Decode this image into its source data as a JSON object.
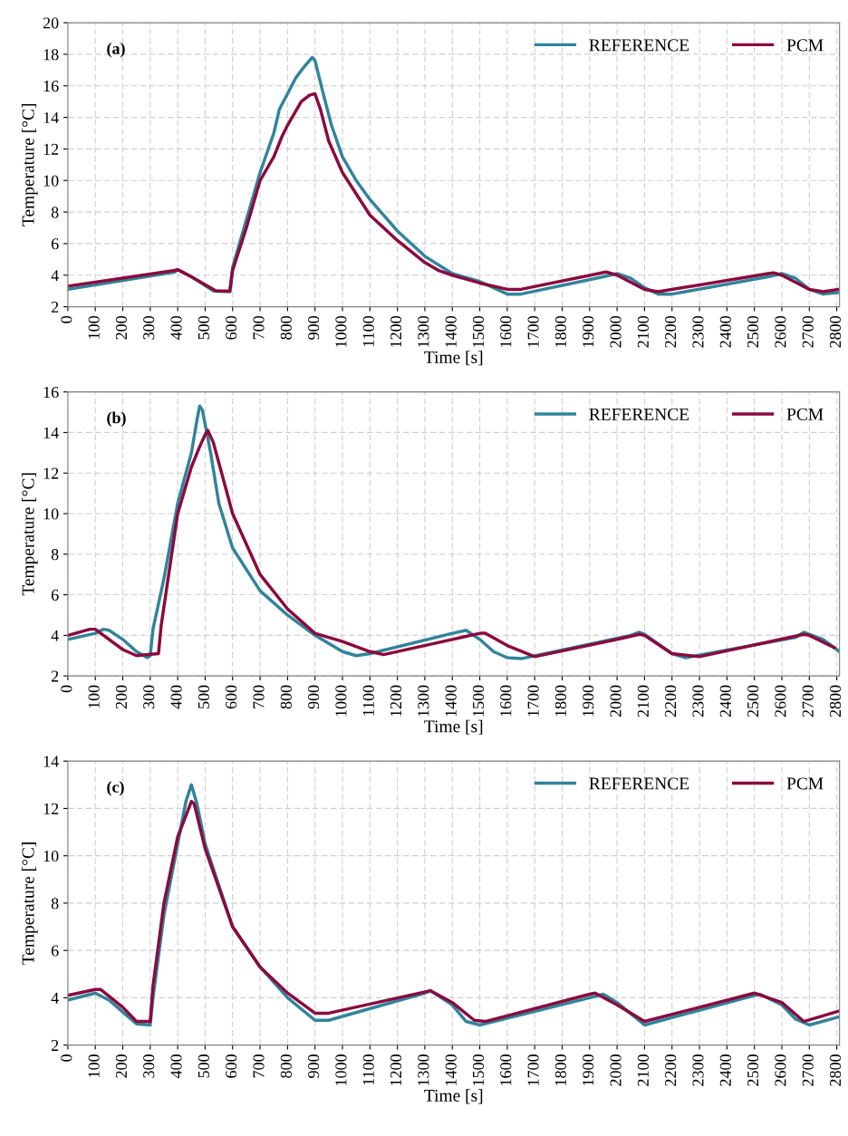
{
  "chart_data": [
    {
      "type": "line",
      "annotations": [
        "(a)"
      ],
      "xlabel": "Time [s]",
      "ylabel": "Temperature [°C]",
      "xlim": [
        0,
        2810
      ],
      "xticks": [
        0,
        100,
        200,
        300,
        400,
        500,
        600,
        700,
        800,
        900,
        1000,
        1100,
        1200,
        1300,
        1400,
        1500,
        1600,
        1700,
        1800,
        1900,
        2000,
        2100,
        2200,
        2300,
        2400,
        2500,
        2600,
        2700,
        2800
      ],
      "ylim": [
        2,
        20
      ],
      "yticks": [
        2,
        4,
        6,
        8,
        10,
        12,
        14,
        16,
        18,
        20
      ],
      "grid": true,
      "legend": "top right",
      "series": [
        {
          "name": "REFERENCE",
          "color": "#31849b",
          "x": [
            0,
            390,
            400,
            450,
            530,
            590,
            600,
            650,
            700,
            750,
            770,
            800,
            830,
            860,
            890,
            900,
            930,
            960,
            1000,
            1050,
            1100,
            1200,
            1300,
            1400,
            1500,
            1550,
            1600,
            1650,
            1950,
            2000,
            2050,
            2100,
            2150,
            2200,
            2550,
            2600,
            2650,
            2700,
            2750,
            2810
          ],
          "values": [
            3.1,
            4.2,
            4.35,
            3.9,
            3.0,
            2.95,
            4.5,
            7.5,
            10.5,
            13,
            14.5,
            15.5,
            16.5,
            17.2,
            17.8,
            17.6,
            15.5,
            13.5,
            11.5,
            10,
            8.8,
            6.8,
            5.2,
            4.1,
            3.6,
            3.2,
            2.8,
            2.8,
            3.9,
            4.1,
            3.8,
            3.2,
            2.8,
            2.8,
            3.9,
            4.1,
            3.8,
            3.1,
            2.8,
            2.9
          ]
        },
        {
          "name": "PCM",
          "color": "#8b0a3e",
          "x": [
            0,
            390,
            400,
            450,
            500,
            540,
            590,
            600,
            650,
            700,
            750,
            780,
            800,
            850,
            880,
            900,
            920,
            950,
            1000,
            1100,
            1200,
            1300,
            1350,
            1400,
            1500,
            1600,
            1650,
            1960,
            2000,
            2100,
            2150,
            2550,
            2570,
            2600,
            2700,
            2750,
            2810
          ],
          "values": [
            3.3,
            4.3,
            4.35,
            3.9,
            3.4,
            3.0,
            3.0,
            4.3,
            7,
            10,
            11.5,
            12.8,
            13.5,
            15.0,
            15.4,
            15.5,
            14.5,
            12.5,
            10.5,
            7.8,
            6.2,
            4.8,
            4.3,
            4.0,
            3.5,
            3.1,
            3.1,
            4.2,
            4.0,
            3.1,
            2.95,
            4.1,
            4.15,
            4.0,
            3.1,
            2.95,
            3.1
          ]
        }
      ]
    },
    {
      "type": "line",
      "annotations": [
        "(b)"
      ],
      "xlabel": "Time [s]",
      "ylabel": "Temperature [°C]",
      "xlim": [
        0,
        2810
      ],
      "xticks": [
        0,
        100,
        200,
        300,
        400,
        500,
        600,
        700,
        800,
        900,
        1000,
        1100,
        1200,
        1300,
        1400,
        1500,
        1600,
        1700,
        1800,
        1900,
        2000,
        2100,
        2200,
        2300,
        2400,
        2500,
        2600,
        2700,
        2800
      ],
      "ylim": [
        2,
        16
      ],
      "yticks": [
        2,
        4,
        6,
        8,
        10,
        12,
        14,
        16
      ],
      "grid": true,
      "legend": "top right",
      "series": [
        {
          "name": "REFERENCE",
          "color": "#31849b",
          "x": [
            0,
            100,
            130,
            150,
            200,
            250,
            290,
            300,
            310,
            350,
            400,
            450,
            470,
            480,
            490,
            520,
            550,
            600,
            700,
            800,
            900,
            1000,
            1050,
            1100,
            1400,
            1450,
            1500,
            1550,
            1600,
            1650,
            2050,
            2080,
            2100,
            2200,
            2250,
            2650,
            2680,
            2750,
            2810
          ],
          "values": [
            3.8,
            4.1,
            4.3,
            4.25,
            3.8,
            3.2,
            2.9,
            3.0,
            4.3,
            6.8,
            10.5,
            13,
            14.6,
            15.3,
            15.1,
            13,
            10.5,
            8.3,
            6.2,
            5.0,
            4.0,
            3.2,
            3.0,
            3.1,
            4.1,
            4.25,
            3.8,
            3.2,
            2.9,
            2.85,
            4.0,
            4.15,
            4.05,
            3.1,
            2.9,
            3.9,
            4.15,
            3.8,
            3.2
          ]
        },
        {
          "name": "PCM",
          "color": "#8b0a3e",
          "x": [
            0,
            80,
            100,
            200,
            250,
            330,
            340,
            400,
            450,
            480,
            500,
            510,
            530,
            600,
            700,
            800,
            900,
            1000,
            1100,
            1150,
            1500,
            1520,
            1600,
            1700,
            2000,
            2080,
            2100,
            2200,
            2300,
            2680,
            2700,
            2790
          ],
          "values": [
            4.0,
            4.3,
            4.3,
            3.3,
            3.0,
            3.1,
            4.5,
            10,
            12.3,
            13.3,
            13.9,
            14.1,
            13.5,
            10,
            7,
            5.3,
            4.1,
            3.7,
            3.2,
            3.05,
            4.1,
            4.1,
            3.5,
            2.95,
            3.8,
            4.05,
            4.0,
            3.1,
            2.95,
            4.05,
            4.0,
            3.4
          ]
        }
      ]
    },
    {
      "type": "line",
      "annotations": [
        "(c)"
      ],
      "xlabel": "Time [s]",
      "ylabel": "Temperature [°C]",
      "xlim": [
        0,
        2810
      ],
      "xticks": [
        0,
        100,
        200,
        300,
        400,
        500,
        600,
        700,
        800,
        900,
        1000,
        1100,
        1200,
        1300,
        1400,
        1500,
        1600,
        1700,
        1800,
        1900,
        2000,
        2100,
        2200,
        2300,
        2400,
        2500,
        2600,
        2700,
        2800
      ],
      "ylim": [
        2,
        14
      ],
      "yticks": [
        2,
        4,
        6,
        8,
        10,
        12,
        14
      ],
      "grid": true,
      "legend": "top right",
      "series": [
        {
          "name": "REFERENCE",
          "color": "#31849b",
          "x": [
            0,
            100,
            150,
            200,
            250,
            300,
            310,
            350,
            400,
            430,
            450,
            470,
            500,
            600,
            700,
            800,
            900,
            950,
            1300,
            1320,
            1400,
            1450,
            1500,
            1900,
            1950,
            2000,
            2100,
            2500,
            2520,
            2600,
            2650,
            2700,
            2810
          ],
          "values": [
            3.9,
            4.2,
            3.9,
            3.4,
            2.9,
            2.85,
            4.0,
            7.5,
            10.5,
            12.3,
            13.0,
            12.2,
            10.5,
            7,
            5.3,
            4.0,
            3.05,
            3.05,
            4.2,
            4.3,
            3.7,
            3.0,
            2.85,
            4.0,
            4.15,
            3.8,
            2.85,
            4.1,
            4.15,
            3.7,
            3.1,
            2.85,
            3.2
          ]
        },
        {
          "name": "PCM",
          "color": "#8b0a3e",
          "x": [
            0,
            100,
            120,
            200,
            250,
            300,
            310,
            350,
            400,
            450,
            460,
            500,
            600,
            700,
            800,
            900,
            950,
            1320,
            1400,
            1480,
            1520,
            1900,
            1920,
            2000,
            2100,
            2500,
            2600,
            2680,
            2810
          ],
          "values": [
            4.1,
            4.35,
            4.35,
            3.6,
            3.0,
            3.0,
            4.5,
            8,
            10.8,
            12.3,
            12.2,
            10.3,
            7,
            5.3,
            4.2,
            3.35,
            3.35,
            4.3,
            3.8,
            3.05,
            3.0,
            4.15,
            4.2,
            3.7,
            3.0,
            4.2,
            3.8,
            3.0,
            3.45
          ]
        }
      ]
    }
  ]
}
